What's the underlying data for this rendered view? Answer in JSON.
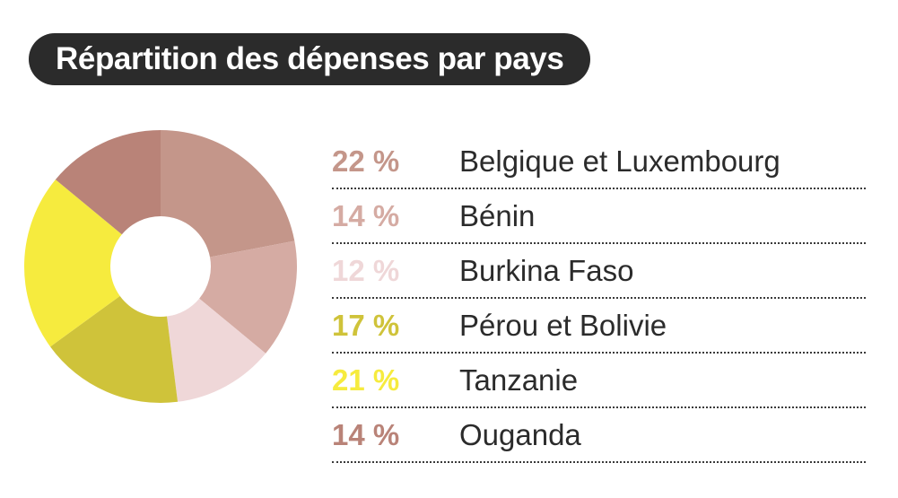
{
  "title": "Répartition des dépenses par pays",
  "chart_data": {
    "type": "pie",
    "variant": "donut",
    "title": "Répartition des dépenses par pays",
    "categories": [
      "Belgique et Luxembourg",
      "Bénin",
      "Burkina Faso",
      "Pérou et Bolivie",
      "Tanzanie",
      "Ouganda"
    ],
    "values": [
      22,
      14,
      12,
      17,
      21,
      14
    ],
    "unit": "%",
    "colors": [
      "#c4968a",
      "#d5aba3",
      "#efd7d8",
      "#cfc33a",
      "#f6eb3e",
      "#b98378"
    ],
    "legend_position": "right"
  },
  "legend": [
    {
      "pct": "22 %",
      "label": "Belgique et Luxembourg",
      "color": "#c4968a"
    },
    {
      "pct": "14 %",
      "label": "Bénin",
      "color": "#d5aba3"
    },
    {
      "pct": "12 %",
      "label": "Burkina Faso",
      "color": "#efd7d8"
    },
    {
      "pct": "17 %",
      "label": "Pérou et Bolivie",
      "color": "#cfc33a"
    },
    {
      "pct": "21 %",
      "label": "Tanzanie",
      "color": "#f6eb3e"
    },
    {
      "pct": "14 %",
      "label": "Ouganda",
      "color": "#b98378"
    }
  ]
}
